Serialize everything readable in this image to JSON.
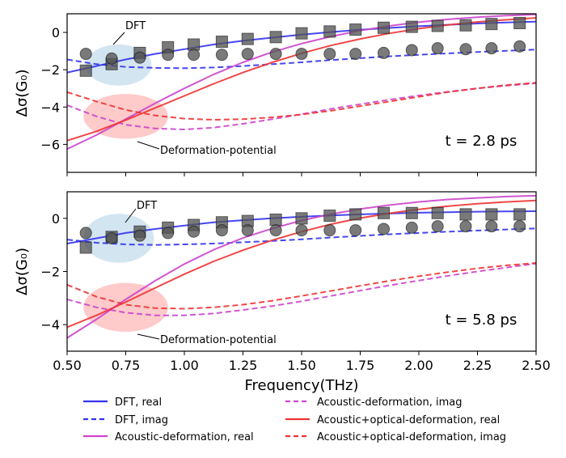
{
  "chart_data": {
    "type": "line",
    "xlabel": "Frequency(THz)",
    "ylabel": "Δσ(G₀)",
    "xlim": [
      0.5,
      2.5
    ],
    "xticks": [
      0.5,
      0.75,
      1.0,
      1.25,
      1.5,
      1.75,
      2.0,
      2.25,
      2.5
    ],
    "xtick_labels": [
      "0.50",
      "0.75",
      "1.00",
      "1.25",
      "1.50",
      "1.75",
      "2.00",
      "2.25",
      "2.50"
    ],
    "colors": {
      "dft": "#3333ee",
      "acoustic": "#cc44cc",
      "optical": "#ee3333",
      "marker": "#555555",
      "dft_ellipse": "#bcd7ea",
      "deformation_ellipse": "#ffb3b3"
    },
    "legend": {
      "placement": "bottom",
      "entries": [
        {
          "label": "DFT, real",
          "color": "#3333ee",
          "style": "solid"
        },
        {
          "label": "DFT, imag",
          "color": "#3333ee",
          "style": "dashed"
        },
        {
          "label": "Acoustic-deformation, real",
          "color": "#cc44cc",
          "style": "solid"
        },
        {
          "label": "Acoustic-deformation, imag",
          "color": "#cc44cc",
          "style": "dashed"
        },
        {
          "label": "Acoustic+optical-deformation, real",
          "color": "#ee3333",
          "style": "solid"
        },
        {
          "label": "Acoustic+optical-deformation, imag",
          "color": "#ee3333",
          "style": "dashed"
        }
      ]
    },
    "panels": [
      {
        "label": "t = 2.8 ps",
        "ylim": [
          -7.5,
          1.0
        ],
        "yticks": [
          0,
          -2,
          -4,
          -6
        ],
        "ytick_labels": [
          "0",
          "−2",
          "−4",
          "−6"
        ],
        "annotations": [
          {
            "text": "DFT",
            "ellipse": {
              "cx": 0.72,
              "cy": -1.75,
              "rx": 0.14,
              "ry": 1.1,
              "color": "dft"
            }
          },
          {
            "text": "Deformation-potential",
            "ellipse": {
              "cx": 0.75,
              "cy": -4.5,
              "rx": 0.18,
              "ry": 1.2,
              "color": "deformation"
            }
          }
        ],
        "x_curve": [
          0.5,
          0.625,
          0.75,
          0.875,
          1.0,
          1.125,
          1.25,
          1.375,
          1.5,
          1.625,
          1.75,
          1.875,
          2.0,
          2.125,
          2.25,
          2.375,
          2.5
        ],
        "series": [
          {
            "name": "DFT, real",
            "color": "dft",
            "dash": false,
            "values": [
              -2.15,
              -1.8,
              -1.45,
              -1.15,
              -0.9,
              -0.65,
              -0.45,
              -0.28,
              -0.12,
              0.02,
              0.14,
              0.24,
              0.33,
              0.41,
              0.48,
              0.53,
              0.58
            ]
          },
          {
            "name": "DFT, imag",
            "color": "dft",
            "dash": true,
            "values": [
              -1.45,
              -1.7,
              -1.85,
              -1.9,
              -1.92,
              -1.88,
              -1.8,
              -1.7,
              -1.6,
              -1.48,
              -1.38,
              -1.28,
              -1.2,
              -1.12,
              -1.05,
              -0.98,
              -0.92
            ]
          },
          {
            "name": "Acoustic-deformation, real",
            "color": "acoustic",
            "dash": false,
            "values": [
              -6.25,
              -5.5,
              -4.65,
              -3.8,
              -3.0,
              -2.25,
              -1.6,
              -1.05,
              -0.6,
              -0.22,
              0.1,
              0.35,
              0.55,
              0.7,
              0.82,
              0.9,
              0.96
            ]
          },
          {
            "name": "Acoustic-deformation, imag",
            "color": "acoustic",
            "dash": true,
            "values": [
              -3.9,
              -4.5,
              -4.95,
              -5.15,
              -5.2,
              -5.1,
              -4.9,
              -4.65,
              -4.38,
              -4.1,
              -3.85,
              -3.6,
              -3.38,
              -3.18,
              -3.0,
              -2.85,
              -2.72
            ]
          },
          {
            "name": "Acoustic+optical-deformation, real",
            "color": "optical",
            "dash": false,
            "values": [
              -5.8,
              -5.3,
              -4.7,
              -4.05,
              -3.4,
              -2.75,
              -2.15,
              -1.6,
              -1.12,
              -0.7,
              -0.35,
              -0.05,
              0.2,
              0.4,
              0.56,
              0.68,
              0.78
            ]
          },
          {
            "name": "Acoustic+optical-deformation, imag",
            "color": "optical",
            "dash": true,
            "values": [
              -3.2,
              -3.7,
              -4.15,
              -4.45,
              -4.62,
              -4.68,
              -4.65,
              -4.55,
              -4.4,
              -4.2,
              -3.95,
              -3.7,
              -3.45,
              -3.2,
              -3.0,
              -2.82,
              -2.7
            ]
          }
        ],
        "markers": {
          "x": [
            0.58,
            0.69,
            0.81,
            0.93,
            1.04,
            1.16,
            1.27,
            1.39,
            1.5,
            1.62,
            1.73,
            1.85,
            1.97,
            2.08,
            2.2,
            2.31,
            2.43
          ],
          "squares": [
            -2.05,
            -1.7,
            -1.1,
            -0.8,
            -0.65,
            -0.5,
            -0.35,
            -0.25,
            -0.05,
            0.05,
            0.15,
            0.25,
            0.3,
            0.35,
            0.38,
            0.45,
            0.5
          ],
          "circles": [
            -1.15,
            -1.4,
            -1.35,
            -1.2,
            -1.2,
            -1.2,
            -1.15,
            -1.15,
            -1.15,
            -1.15,
            -1.15,
            -1.1,
            -0.95,
            -0.85,
            -0.9,
            -0.85,
            -0.75
          ]
        }
      },
      {
        "label": "t = 5.8 ps",
        "ylim": [
          -5.0,
          1.0
        ],
        "yticks": [
          0,
          -2,
          -4
        ],
        "ytick_labels": [
          "0",
          "−2",
          "−4"
        ],
        "annotations": [
          {
            "text": "DFT",
            "ellipse": {
              "cx": 0.72,
              "cy": -0.75,
              "rx": 0.15,
              "ry": 0.92,
              "color": "dft"
            }
          },
          {
            "text": "Deformation-potential",
            "ellipse": {
              "cx": 0.75,
              "cy": -3.35,
              "rx": 0.18,
              "ry": 0.92,
              "color": "deformation"
            }
          }
        ],
        "x_curve": [
          0.5,
          0.625,
          0.75,
          0.875,
          1.0,
          1.125,
          1.25,
          1.375,
          1.5,
          1.625,
          1.75,
          1.875,
          2.0,
          2.125,
          2.25,
          2.375,
          2.5
        ],
        "series": [
          {
            "name": "DFT, real",
            "color": "dft",
            "dash": false,
            "values": [
              -0.95,
              -0.75,
              -0.55,
              -0.4,
              -0.27,
              -0.15,
              -0.07,
              0.0,
              0.06,
              0.11,
              0.15,
              0.18,
              0.21,
              0.23,
              0.25,
              0.26,
              0.27
            ]
          },
          {
            "name": "DFT, imag",
            "color": "dft",
            "dash": true,
            "values": [
              -0.8,
              -0.92,
              -0.98,
              -1.0,
              -0.98,
              -0.95,
              -0.9,
              -0.85,
              -0.79,
              -0.72,
              -0.66,
              -0.6,
              -0.55,
              -0.5,
              -0.46,
              -0.42,
              -0.38
            ]
          },
          {
            "name": "Acoustic-deformation, real",
            "color": "acoustic",
            "dash": false,
            "values": [
              -4.5,
              -3.8,
              -3.05,
              -2.35,
              -1.72,
              -1.18,
              -0.74,
              -0.38,
              -0.08,
              0.16,
              0.35,
              0.5,
              0.62,
              0.71,
              0.77,
              0.82,
              0.85
            ]
          },
          {
            "name": "Acoustic-deformation, imag",
            "color": "acoustic",
            "dash": true,
            "values": [
              -3.05,
              -3.35,
              -3.55,
              -3.65,
              -3.65,
              -3.58,
              -3.45,
              -3.3,
              -3.12,
              -2.92,
              -2.72,
              -2.52,
              -2.34,
              -2.16,
              -2.0,
              -1.85,
              -1.7
            ]
          },
          {
            "name": "Acoustic+optical-deformation, real",
            "color": "optical",
            "dash": false,
            "values": [
              -4.1,
              -3.65,
              -3.15,
              -2.62,
              -2.1,
              -1.62,
              -1.2,
              -0.82,
              -0.5,
              -0.22,
              0.01,
              0.19,
              0.34,
              0.46,
              0.55,
              0.62,
              0.67
            ]
          },
          {
            "name": "Acoustic+optical-deformation, imag",
            "color": "optical",
            "dash": true,
            "values": [
              -2.5,
              -2.95,
              -3.25,
              -3.38,
              -3.4,
              -3.35,
              -3.25,
              -3.1,
              -2.92,
              -2.73,
              -2.54,
              -2.35,
              -2.18,
              -2.02,
              -1.88,
              -1.77,
              -1.68
            ]
          }
        ],
        "markers": {
          "x": [
            0.58,
            0.69,
            0.81,
            0.93,
            1.04,
            1.16,
            1.27,
            1.39,
            1.5,
            1.62,
            1.73,
            1.85,
            1.97,
            2.08,
            2.2,
            2.31,
            2.43
          ],
          "squares": [
            -1.1,
            -0.7,
            -0.5,
            -0.35,
            -0.25,
            -0.15,
            -0.1,
            -0.05,
            0.0,
            0.1,
            0.15,
            0.2,
            0.2,
            0.2,
            0.15,
            0.15,
            0.15
          ],
          "circles": [
            -0.55,
            -0.75,
            -0.65,
            -0.55,
            -0.5,
            -0.45,
            -0.45,
            -0.45,
            -0.45,
            -0.45,
            -0.45,
            -0.4,
            -0.35,
            -0.3,
            -0.3,
            -0.3,
            -0.3
          ]
        }
      }
    ]
  }
}
